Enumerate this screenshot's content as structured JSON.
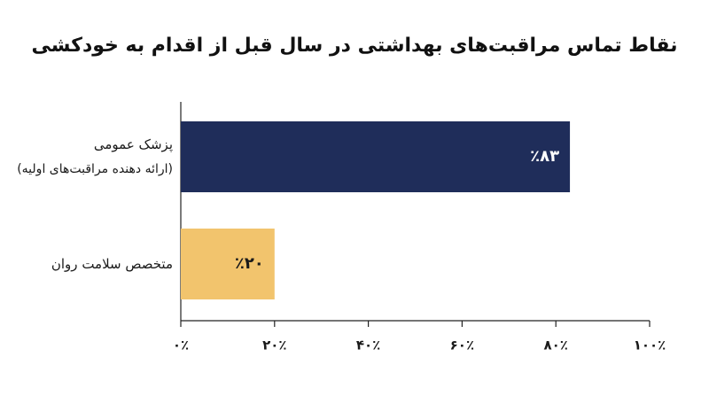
{
  "chart_data": {
    "type": "bar",
    "orientation": "horizontal",
    "title": "نقاط تماس مراقبت‌های بهداشتی در سال قبل از اقدام به خودکشی",
    "categories": [
      "پزشک عمومی\n(ارائه دهنده مراقبت‌های اولیه)",
      "متخصص سلامت روان"
    ],
    "values": [
      83,
      20
    ],
    "value_labels": [
      "٪۸۳",
      "٪۲۰"
    ],
    "colors": [
      "#1f2d5a",
      "#f2c46d"
    ],
    "value_label_colors": [
      "#ffffff",
      "#1a1a1a"
    ],
    "xlim": [
      0,
      100
    ],
    "xticks": [
      {
        "value": 0,
        "label": "۰٪"
      },
      {
        "value": 20,
        "label": "۲۰٪"
      },
      {
        "value": 40,
        "label": "۴۰٪"
      },
      {
        "value": 60,
        "label": "۶۰٪"
      },
      {
        "value": 80,
        "label": "۸۰٪"
      },
      {
        "value": 100,
        "label": "۱۰۰٪"
      }
    ],
    "grid": false
  }
}
